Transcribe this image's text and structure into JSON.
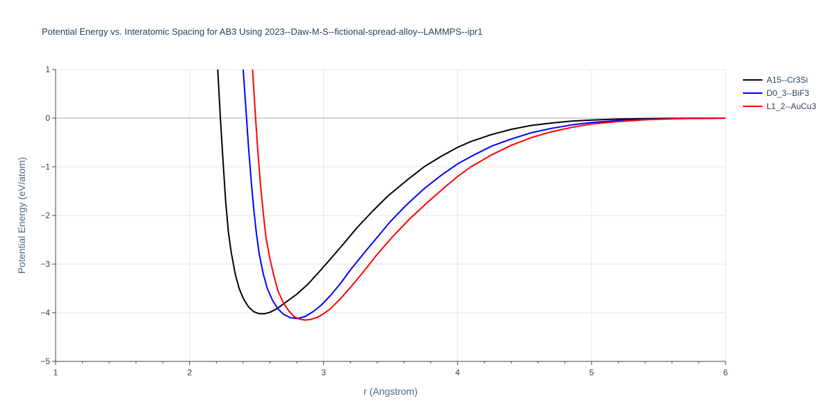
{
  "chart_data": {
    "type": "line",
    "title": "Potential Energy vs. Interatomic Spacing for AB3 Using 2023--Daw-M-S--fictional-spread-alloy--LAMMPS--ipr1",
    "xlabel": "r (Angstrom)",
    "ylabel": "Potential Energy (eV/atom)",
    "xlim": [
      1,
      6
    ],
    "ylim": [
      -5,
      1
    ],
    "xticks": [
      1,
      2,
      3,
      4,
      5,
      6
    ],
    "yticks": [
      -5,
      -4,
      -3,
      -2,
      -1,
      0,
      1
    ],
    "xtick_labels": [
      "1",
      "2",
      "3",
      "4",
      "5",
      "6"
    ],
    "ytick_labels": [
      "−5",
      "−4",
      "−3",
      "−2",
      "−1",
      "0",
      "1"
    ],
    "grid": true,
    "legend_position": "top-right",
    "series": [
      {
        "name": "A15--Cr3Si",
        "color": "#000000",
        "x": [
          2.21,
          2.23,
          2.25,
          2.27,
          2.29,
          2.31,
          2.34,
          2.37,
          2.4,
          2.44,
          2.48,
          2.52,
          2.56,
          2.6,
          2.65,
          2.72,
          2.8,
          2.88,
          2.97,
          3.05,
          3.15,
          3.25,
          3.37,
          3.48,
          3.62,
          3.75,
          3.88,
          4.0,
          4.1,
          4.25,
          4.4,
          4.55,
          4.7,
          4.85,
          5.0,
          5.2,
          5.4,
          5.6,
          5.8,
          6.0
        ],
        "y": [
          1.0,
          0.0,
          -0.9,
          -1.75,
          -2.35,
          -2.75,
          -3.2,
          -3.5,
          -3.7,
          -3.88,
          -3.98,
          -4.02,
          -4.02,
          -3.99,
          -3.92,
          -3.78,
          -3.62,
          -3.42,
          -3.15,
          -2.9,
          -2.58,
          -2.25,
          -1.9,
          -1.6,
          -1.28,
          -1.0,
          -0.78,
          -0.6,
          -0.48,
          -0.34,
          -0.23,
          -0.15,
          -0.1,
          -0.06,
          -0.04,
          -0.02,
          -0.01,
          -0.005,
          -0.002,
          0.0
        ]
      },
      {
        "name": "D0_3--BiF3",
        "color": "#0000ff",
        "x": [
          2.4,
          2.42,
          2.44,
          2.46,
          2.48,
          2.5,
          2.52,
          2.55,
          2.58,
          2.62,
          2.66,
          2.7,
          2.75,
          2.8,
          2.86,
          2.92,
          2.98,
          3.05,
          3.12,
          3.2,
          3.3,
          3.4,
          3.5,
          3.62,
          3.75,
          3.88,
          4.0,
          4.12,
          4.25,
          4.4,
          4.55,
          4.7,
          4.85,
          5.0,
          5.2,
          5.4,
          5.6,
          5.8,
          6.0
        ],
        "y": [
          1.0,
          0.2,
          -0.6,
          -1.3,
          -1.9,
          -2.4,
          -2.8,
          -3.2,
          -3.5,
          -3.75,
          -3.92,
          -4.03,
          -4.1,
          -4.12,
          -4.08,
          -3.98,
          -3.85,
          -3.65,
          -3.42,
          -3.12,
          -2.78,
          -2.45,
          -2.12,
          -1.78,
          -1.45,
          -1.17,
          -0.94,
          -0.76,
          -0.58,
          -0.43,
          -0.3,
          -0.21,
          -0.14,
          -0.09,
          -0.05,
          -0.025,
          -0.01,
          -0.004,
          0.0
        ]
      },
      {
        "name": "L1_2--AuCu3",
        "color": "#ff0000",
        "x": [
          2.47,
          2.49,
          2.51,
          2.53,
          2.55,
          2.57,
          2.6,
          2.63,
          2.66,
          2.7,
          2.74,
          2.78,
          2.82,
          2.86,
          2.9,
          2.95,
          3.0,
          3.05,
          3.12,
          3.2,
          3.3,
          3.4,
          3.52,
          3.65,
          3.78,
          3.9,
          4.0,
          4.1,
          4.25,
          4.4,
          4.55,
          4.7,
          4.85,
          5.0,
          5.2,
          5.4,
          5.6,
          5.8,
          6.0
        ],
        "y": [
          1.0,
          0.1,
          -0.7,
          -1.4,
          -1.95,
          -2.45,
          -2.9,
          -3.25,
          -3.55,
          -3.8,
          -3.96,
          -4.08,
          -4.13,
          -4.15,
          -4.14,
          -4.1,
          -4.02,
          -3.92,
          -3.73,
          -3.48,
          -3.15,
          -2.8,
          -2.42,
          -2.05,
          -1.72,
          -1.43,
          -1.2,
          -1.0,
          -0.76,
          -0.56,
          -0.4,
          -0.28,
          -0.19,
          -0.12,
          -0.07,
          -0.035,
          -0.015,
          -0.005,
          0.0
        ]
      }
    ]
  }
}
